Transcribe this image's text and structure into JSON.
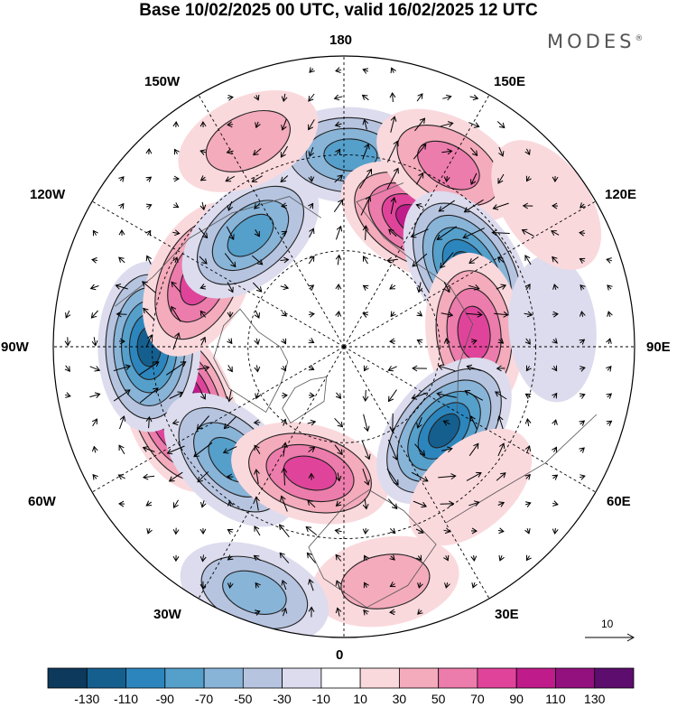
{
  "title": "Base 10/02/2025 00 UTC, valid 16/02/2025 12 UTC",
  "brand": {
    "name": "MODES",
    "mark": "®"
  },
  "longitude_labels": [
    {
      "id": "lon-0",
      "text": "0"
    },
    {
      "id": "lon-30e",
      "text": "30E"
    },
    {
      "id": "lon-60e",
      "text": "60E"
    },
    {
      "id": "lon-90e",
      "text": "90E"
    },
    {
      "id": "lon-120e",
      "text": "120E"
    },
    {
      "id": "lon-150e",
      "text": "150E"
    },
    {
      "id": "lon-180",
      "text": "180"
    },
    {
      "id": "lon-150w",
      "text": "150W"
    },
    {
      "id": "lon-120w",
      "text": "120W"
    },
    {
      "id": "lon-90w",
      "text": "90W"
    },
    {
      "id": "lon-60w",
      "text": "60W"
    },
    {
      "id": "lon-30w",
      "text": "30W"
    }
  ],
  "vector_scale": {
    "value": "10"
  },
  "colorbar": {
    "tick_labels": [
      "-130",
      "-110",
      "-90",
      "-70",
      "-50",
      "-30",
      "-10",
      "10",
      "30",
      "50",
      "70",
      "90",
      "110",
      "130"
    ],
    "colors": [
      "#0d3a5c",
      "#155f8f",
      "#2c86bd",
      "#559fcb",
      "#88b4d8",
      "#b6c4e0",
      "#dcdcee",
      "#ffffff",
      "#fad9dd",
      "#f4abbc",
      "#ec7cab",
      "#e0449a",
      "#bf1b8a",
      "#93117f",
      "#5c0d6d"
    ]
  },
  "anomaly_cells": [
    {
      "lon": -70,
      "r": 0.6,
      "value": 140
    },
    {
      "lon": -90,
      "r": 0.67,
      "value": -110
    },
    {
      "lon": -45,
      "r": 0.55,
      "value": -80
    },
    {
      "lon": -15,
      "r": 0.45,
      "value": 75
    },
    {
      "lon": -115,
      "r": 0.55,
      "value": 85
    },
    {
      "lon": -140,
      "r": 0.5,
      "value": -70
    },
    {
      "lon": 178,
      "r": 0.66,
      "value": -70
    },
    {
      "lon": -155,
      "r": 0.78,
      "value": 30
    },
    {
      "lon": 150,
      "r": 0.5,
      "value": 90
    },
    {
      "lon": 150,
      "r": 0.72,
      "value": 60
    },
    {
      "lon": 122,
      "r": 0.5,
      "value": -120
    },
    {
      "lon": 96,
      "r": 0.45,
      "value": 75
    },
    {
      "lon": 50,
      "r": 0.45,
      "value": -110
    },
    {
      "lon": 42,
      "r": 0.65,
      "value": 20
    },
    {
      "lon": 10,
      "r": 0.82,
      "value": 30
    },
    {
      "lon": -20,
      "r": 0.9,
      "value": -50
    },
    {
      "lon": 95,
      "r": 0.72,
      "value": -25
    },
    {
      "lon": 125,
      "r": 0.85,
      "value": 20
    }
  ]
}
